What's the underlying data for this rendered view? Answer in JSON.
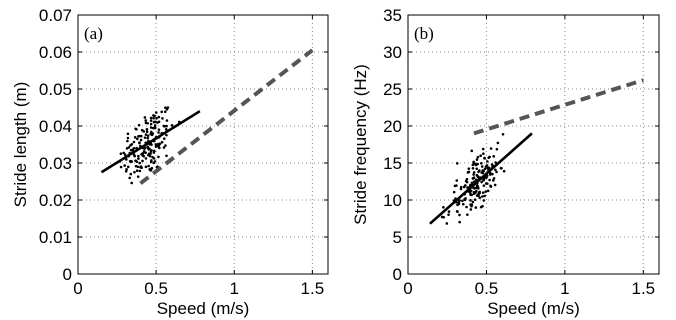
{
  "chart_data": [
    {
      "type": "scatter",
      "panel_label": "(a)",
      "xlabel": "Speed (m/s)",
      "ylabel": "Stride length (m)",
      "xlim": [
        0,
        1.6
      ],
      "ylim": [
        0,
        0.07
      ],
      "x_ticks": [
        0,
        0.5,
        1,
        1.5
      ],
      "x_tick_labels": [
        "0",
        "0.5",
        "1",
        "1.5"
      ],
      "y_ticks": [
        0,
        0.01,
        0.02,
        0.03,
        0.04,
        0.05,
        0.06,
        0.07
      ],
      "y_tick_labels": [
        "0",
        "0.01",
        "0.02",
        "0.03",
        "0.04",
        "0.05",
        "0.06",
        "0.07"
      ],
      "grid": true,
      "scatter": {
        "center_x": 0.44,
        "spread_x": 0.09,
        "center_y": 0.035,
        "spread_y": 0.0045,
        "slope": 0.026,
        "count": 180,
        "x_min": 0.26,
        "x_max": 0.65,
        "y_min": 0.023,
        "y_max": 0.047,
        "color": "#000000"
      },
      "fit_line": {
        "x": [
          0.15,
          0.78
        ],
        "y": [
          0.0275,
          0.044
        ],
        "color": "#000000"
      },
      "dashed_line": {
        "x": [
          0.4,
          1.5
        ],
        "y": [
          0.0245,
          0.0605
        ],
        "color": "#555555"
      }
    },
    {
      "type": "scatter",
      "panel_label": "(b)",
      "xlabel": "Speed (m/s)",
      "ylabel": "Stride frequency (Hz)",
      "xlim": [
        0,
        1.6
      ],
      "ylim": [
        0,
        35
      ],
      "x_ticks": [
        0,
        0.5,
        1,
        1.5
      ],
      "x_tick_labels": [
        "0",
        "0.5",
        "1",
        "1.5"
      ],
      "y_ticks": [
        0,
        5,
        10,
        15,
        20,
        25,
        30,
        35
      ],
      "y_tick_labels": [
        "0",
        "5",
        "10",
        "15",
        "20",
        "25",
        "30",
        "35"
      ],
      "grid": true,
      "scatter": {
        "center_x": 0.43,
        "spread_x": 0.09,
        "center_y": 12.2,
        "spread_y": 1.6,
        "slope": 19.0,
        "count": 180,
        "x_min": 0.2,
        "x_max": 0.68,
        "y_min": 6.5,
        "y_max": 19.0,
        "color": "#000000"
      },
      "fit_line": {
        "x": [
          0.14,
          0.79
        ],
        "y": [
          6.8,
          19.0
        ],
        "color": "#000000"
      },
      "dashed_line": {
        "x": [
          0.42,
          1.5
        ],
        "y": [
          19.0,
          26.2
        ],
        "color": "#555555"
      }
    }
  ]
}
